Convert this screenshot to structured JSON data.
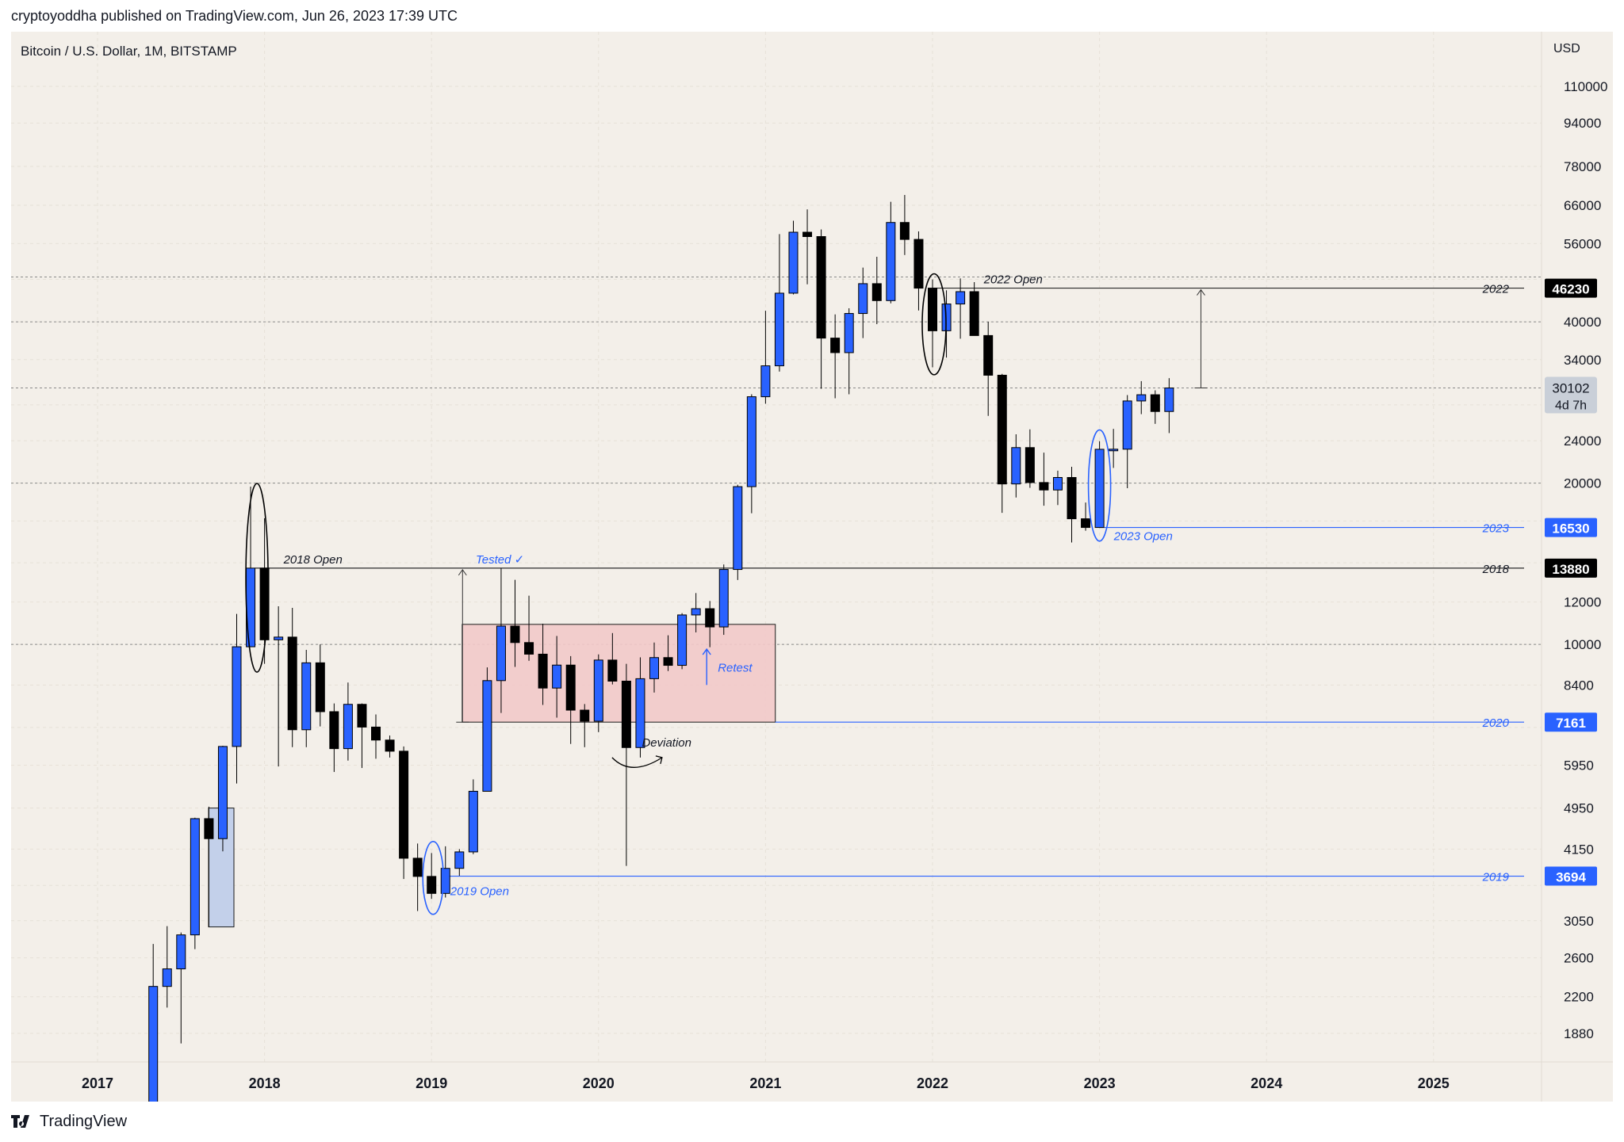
{
  "header": {
    "publisher": "cryptoyoddha published on TradingView.com, Jun 26, 2023 17:39 UTC",
    "symbol": "Bitcoin / U.S. Dollar, 1M, BITSTAMP",
    "currency": "USD"
  },
  "footer": {
    "brand": "TradingView"
  },
  "colors": {
    "background": "#f3efe9",
    "up_candle": "#2962ff",
    "down_candle": "#000000",
    "highlight_zone": "#f2c9c9",
    "accent_blue": "#2962ff"
  },
  "price_badge": {
    "price": "30102",
    "countdown": "4d 7h"
  },
  "chart_data": {
    "type": "candlestick",
    "title": "Bitcoin / U.S. Dollar, 1M, BITSTAMP",
    "y_scale": "log",
    "ylim": [
      1720,
      130000
    ],
    "y_ticks": [
      1880,
      2200,
      2600,
      3050,
      3550,
      4150,
      4950,
      5950,
      7000,
      8400,
      10000,
      12000,
      14200,
      17000,
      20000,
      24000,
      28000,
      34000,
      40000,
      48000,
      56000,
      66000,
      78000,
      94000,
      110000
    ],
    "y_tick_labels": [
      "1880",
      "2200",
      "2600",
      "3050",
      "",
      "4150",
      "4950",
      "5950",
      "",
      "8400",
      "10000",
      "12000",
      "",
      "",
      "20000",
      "24000",
      "",
      "34000",
      "40000",
      "",
      "56000",
      "66000",
      "78000",
      "94000",
      "110000"
    ],
    "x_ticks": [
      "2017",
      "2018",
      "2019",
      "2020",
      "2021",
      "2022",
      "2023",
      "2024",
      "2025"
    ],
    "candles": [
      {
        "date": "2017-05",
        "o": 1350,
        "h": 2760,
        "l": 1350,
        "c": 2300
      },
      {
        "date": "2017-06",
        "o": 2300,
        "h": 2980,
        "l": 2100,
        "c": 2480
      },
      {
        "date": "2017-07",
        "o": 2480,
        "h": 2900,
        "l": 1800,
        "c": 2870
      },
      {
        "date": "2017-08",
        "o": 2870,
        "h": 4750,
        "l": 2700,
        "c": 4730
      },
      {
        "date": "2017-09",
        "o": 4730,
        "h": 4980,
        "l": 2970,
        "c": 4340
      },
      {
        "date": "2017-10",
        "o": 4340,
        "h": 6470,
        "l": 4110,
        "c": 6450
      },
      {
        "date": "2017-11",
        "o": 6450,
        "h": 11400,
        "l": 5500,
        "c": 9900
      },
      {
        "date": "2017-12",
        "o": 9900,
        "h": 19700,
        "l": 10500,
        "c": 13880
      },
      {
        "date": "2018-01",
        "o": 13880,
        "h": 17200,
        "l": 9200,
        "c": 10200
      },
      {
        "date": "2018-02",
        "o": 10200,
        "h": 11780,
        "l": 5920,
        "c": 10320
      },
      {
        "date": "2018-03",
        "o": 10320,
        "h": 11700,
        "l": 6430,
        "c": 6930
      },
      {
        "date": "2018-04",
        "o": 6930,
        "h": 9770,
        "l": 6430,
        "c": 9240
      },
      {
        "date": "2018-05",
        "o": 9240,
        "h": 10000,
        "l": 7030,
        "c": 7490
      },
      {
        "date": "2018-06",
        "o": 7490,
        "h": 7760,
        "l": 5780,
        "c": 6390
      },
      {
        "date": "2018-07",
        "o": 6390,
        "h": 8490,
        "l": 6070,
        "c": 7730
      },
      {
        "date": "2018-08",
        "o": 7730,
        "h": 7760,
        "l": 5880,
        "c": 7010
      },
      {
        "date": "2018-09",
        "o": 7010,
        "h": 7400,
        "l": 6120,
        "c": 6630
      },
      {
        "date": "2018-10",
        "o": 6630,
        "h": 6760,
        "l": 6150,
        "c": 6320
      },
      {
        "date": "2018-11",
        "o": 6320,
        "h": 6450,
        "l": 3650,
        "c": 3990
      },
      {
        "date": "2018-12",
        "o": 3990,
        "h": 4250,
        "l": 3180,
        "c": 3690
      },
      {
        "date": "2019-01",
        "o": 3690,
        "h": 4080,
        "l": 3350,
        "c": 3430
      },
      {
        "date": "2019-02",
        "o": 3430,
        "h": 4200,
        "l": 3370,
        "c": 3820
      },
      {
        "date": "2019-03",
        "o": 3820,
        "h": 4150,
        "l": 3700,
        "c": 4100
      },
      {
        "date": "2019-04",
        "o": 4100,
        "h": 5600,
        "l": 4060,
        "c": 5320
      },
      {
        "date": "2019-05",
        "o": 5320,
        "h": 9060,
        "l": 5340,
        "c": 8560
      },
      {
        "date": "2019-06",
        "o": 8560,
        "h": 13880,
        "l": 7450,
        "c": 10820
      },
      {
        "date": "2019-07",
        "o": 10820,
        "h": 13200,
        "l": 9080,
        "c": 10080
      },
      {
        "date": "2019-08",
        "o": 10080,
        "h": 12330,
        "l": 9320,
        "c": 9590
      },
      {
        "date": "2019-09",
        "o": 9590,
        "h": 10930,
        "l": 7710,
        "c": 8290
      },
      {
        "date": "2019-10",
        "o": 8290,
        "h": 10370,
        "l": 7300,
        "c": 9150
      },
      {
        "date": "2019-11",
        "o": 9150,
        "h": 9510,
        "l": 6520,
        "c": 7540
      },
      {
        "date": "2019-12",
        "o": 7540,
        "h": 7740,
        "l": 6430,
        "c": 7190
      },
      {
        "date": "2020-01",
        "o": 7190,
        "h": 9580,
        "l": 6860,
        "c": 9350
      },
      {
        "date": "2020-02",
        "o": 9350,
        "h": 10500,
        "l": 8420,
        "c": 8540
      },
      {
        "date": "2020-03",
        "o": 8540,
        "h": 9200,
        "l": 3860,
        "c": 6420
      },
      {
        "date": "2020-04",
        "o": 6420,
        "h": 9460,
        "l": 6150,
        "c": 8630
      },
      {
        "date": "2020-05",
        "o": 8630,
        "h": 10080,
        "l": 8130,
        "c": 9450
      },
      {
        "date": "2020-06",
        "o": 9450,
        "h": 10400,
        "l": 8920,
        "c": 9140
      },
      {
        "date": "2020-07",
        "o": 9140,
        "h": 11440,
        "l": 8990,
        "c": 11350
      },
      {
        "date": "2020-08",
        "o": 11350,
        "h": 12470,
        "l": 10530,
        "c": 11660
      },
      {
        "date": "2020-09",
        "o": 11660,
        "h": 12050,
        "l": 9880,
        "c": 10780
      },
      {
        "date": "2020-10",
        "o": 10780,
        "h": 14100,
        "l": 10420,
        "c": 13800
      },
      {
        "date": "2020-11",
        "o": 13800,
        "h": 19860,
        "l": 13190,
        "c": 19700
      },
      {
        "date": "2020-12",
        "o": 19700,
        "h": 29300,
        "l": 17570,
        "c": 28990
      },
      {
        "date": "2021-01",
        "o": 28990,
        "h": 41950,
        "l": 28130,
        "c": 33110
      },
      {
        "date": "2021-02",
        "o": 33110,
        "h": 58330,
        "l": 32300,
        "c": 45240
      },
      {
        "date": "2021-03",
        "o": 45240,
        "h": 61780,
        "l": 45000,
        "c": 58790
      },
      {
        "date": "2021-04",
        "o": 58790,
        "h": 64850,
        "l": 47000,
        "c": 57700
      },
      {
        "date": "2021-05",
        "o": 57700,
        "h": 59500,
        "l": 30000,
        "c": 37300
      },
      {
        "date": "2021-06",
        "o": 37300,
        "h": 41300,
        "l": 28800,
        "c": 35040
      },
      {
        "date": "2021-07",
        "o": 35040,
        "h": 42400,
        "l": 29300,
        "c": 41460
      },
      {
        "date": "2021-08",
        "o": 41460,
        "h": 50500,
        "l": 37300,
        "c": 47130
      },
      {
        "date": "2021-09",
        "o": 47130,
        "h": 52900,
        "l": 39600,
        "c": 43820
      },
      {
        "date": "2021-10",
        "o": 43820,
        "h": 67000,
        "l": 43300,
        "c": 61300
      },
      {
        "date": "2021-11",
        "o": 61300,
        "h": 69000,
        "l": 53300,
        "c": 57000
      },
      {
        "date": "2021-12",
        "o": 57000,
        "h": 59000,
        "l": 42000,
        "c": 46230
      },
      {
        "date": "2022-01",
        "o": 46230,
        "h": 47990,
        "l": 32900,
        "c": 38490
      },
      {
        "date": "2022-02",
        "o": 38490,
        "h": 45800,
        "l": 34300,
        "c": 43190
      },
      {
        "date": "2022-03",
        "o": 43190,
        "h": 48200,
        "l": 37200,
        "c": 45540
      },
      {
        "date": "2022-04",
        "o": 45540,
        "h": 47440,
        "l": 37700,
        "c": 37710
      },
      {
        "date": "2022-05",
        "o": 37710,
        "h": 40000,
        "l": 26700,
        "c": 31800
      },
      {
        "date": "2022-06",
        "o": 31800,
        "h": 31990,
        "l": 17600,
        "c": 19930
      },
      {
        "date": "2022-07",
        "o": 19930,
        "h": 24670,
        "l": 18800,
        "c": 23300
      },
      {
        "date": "2022-08",
        "o": 23300,
        "h": 25200,
        "l": 19600,
        "c": 20050
      },
      {
        "date": "2022-09",
        "o": 20050,
        "h": 22800,
        "l": 18150,
        "c": 19420
      },
      {
        "date": "2022-10",
        "o": 19420,
        "h": 21100,
        "l": 18200,
        "c": 20490
      },
      {
        "date": "2022-11",
        "o": 20490,
        "h": 21450,
        "l": 15500,
        "c": 17160
      },
      {
        "date": "2022-12",
        "o": 17160,
        "h": 18400,
        "l": 16300,
        "c": 16530
      },
      {
        "date": "2023-01",
        "o": 16530,
        "h": 23950,
        "l": 16500,
        "c": 23130
      },
      {
        "date": "2023-02",
        "o": 23130,
        "h": 25250,
        "l": 21350,
        "c": 23140
      },
      {
        "date": "2023-03",
        "o": 23140,
        "h": 29200,
        "l": 19570,
        "c": 28470
      },
      {
        "date": "2023-04",
        "o": 28470,
        "h": 31000,
        "l": 26900,
        "c": 29240
      },
      {
        "date": "2023-05",
        "o": 29240,
        "h": 29800,
        "l": 25800,
        "c": 27210
      },
      {
        "date": "2023-06",
        "o": 27210,
        "h": 31400,
        "l": 24800,
        "c": 30102
      }
    ],
    "horizontal_levels": [
      {
        "label": "2022",
        "price": 46230,
        "text": "46230"
      },
      {
        "label": "2023",
        "price": 16530,
        "text": "16530"
      },
      {
        "label": "2018",
        "price": 13880,
        "text": "13880"
      },
      {
        "label": "2020",
        "price": 7161,
        "text": "7161"
      },
      {
        "label": "2019",
        "price": 3694,
        "text": "3694"
      }
    ],
    "annotations": [
      {
        "text": "2018 Open",
        "date": "2018-01",
        "price": 13880
      },
      {
        "text": "2022 Open",
        "date": "2022-04",
        "price": 46230
      },
      {
        "text": "2023 Open",
        "date": "2023-01",
        "price": 16530
      },
      {
        "text": "2019 Open",
        "date": "2019-02",
        "price": 3694
      },
      {
        "text": "Tested ✓",
        "date": "2019-06",
        "price": 13880
      },
      {
        "text": "Retest",
        "date": "2020-09",
        "price": 9000
      },
      {
        "text": "Deviation",
        "date": "2020-04",
        "price": 6400
      }
    ],
    "range_box": {
      "from_date": "2019-04",
      "to_date": "2020-10",
      "low": 7161,
      "high": 10900
    }
  }
}
